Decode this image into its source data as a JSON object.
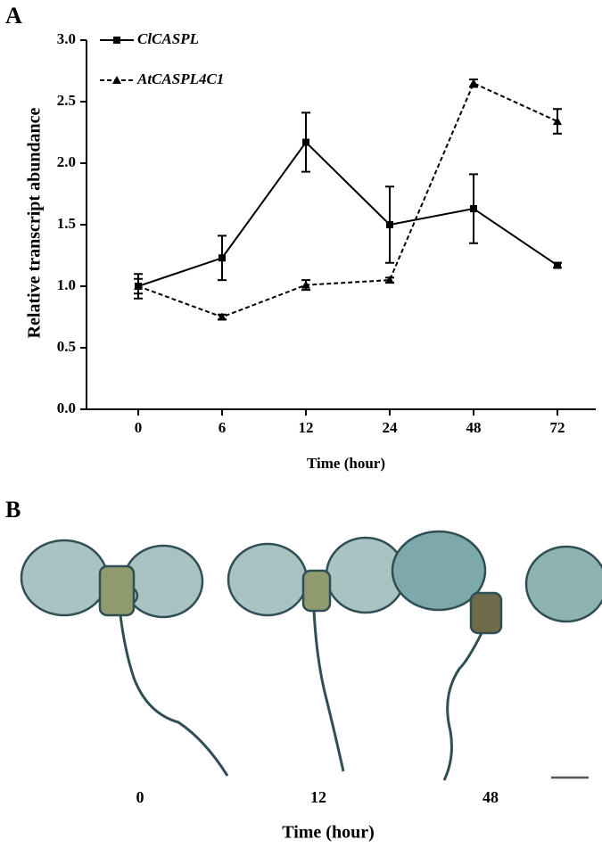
{
  "panel_labels": [
    "A",
    "B"
  ],
  "chart_data": {
    "type": "line",
    "ylabel": "Relative transcript abundance",
    "xlabel": "Time (hour)",
    "categories": [
      "0",
      "6",
      "12",
      "24",
      "48",
      "72"
    ],
    "series": [
      {
        "name": "ClCASPL",
        "color": "#000000",
        "dash": false,
        "marker": "square",
        "values": [
          1.0,
          1.23,
          2.17,
          1.5,
          1.63,
          1.17
        ],
        "errors": [
          0.1,
          0.18,
          0.24,
          0.31,
          0.28,
          0.02
        ]
      },
      {
        "name": "AtCASPL4C1",
        "color": "#000000",
        "dash": true,
        "marker": "triangle",
        "values": [
          1.0,
          0.75,
          1.01,
          1.05,
          2.65,
          2.34
        ],
        "errors": [
          0.06,
          0.02,
          0.04,
          0.02,
          0.03,
          0.1
        ]
      }
    ],
    "ylim": [
      0,
      3
    ],
    "yticks": [
      {
        "value": 0,
        "label": "0.0"
      },
      0.5,
      {
        "value": 1,
        "label": "1.0"
      },
      1.5,
      {
        "value": 2,
        "label": "2.0"
      },
      2.5,
      {
        "value": 3,
        "label": "3.0"
      }
    ],
    "legend": "top-left"
  },
  "panel_b": {
    "labels": [
      "0",
      "12",
      "48"
    ],
    "xlabel": "Time (hour)"
  }
}
